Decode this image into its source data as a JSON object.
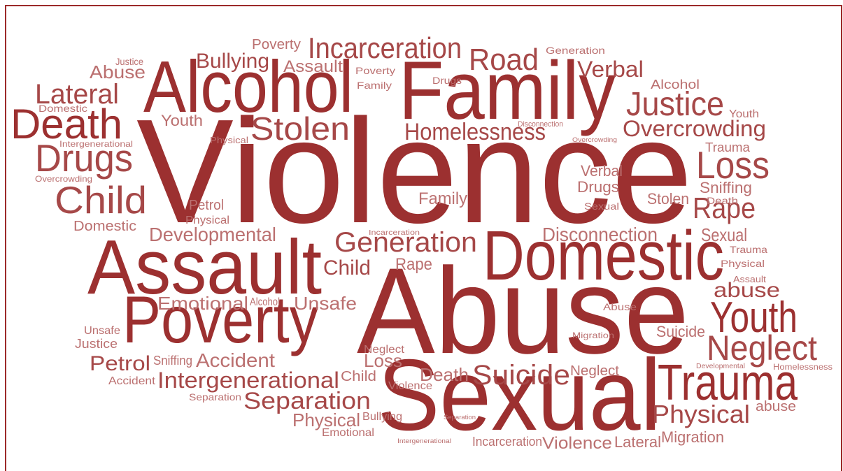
{
  "words": [
    "Violence",
    "Abuse",
    "Sexual",
    "Family",
    "Alcohol",
    "Assault",
    "Domestic",
    "Poverty",
    "Trauma",
    "Youth",
    "Neglect",
    "Death",
    "Drugs",
    "Child",
    "Lateral",
    "Stolen",
    "Justice",
    "Loss",
    "Rape",
    "Road",
    "Incarceration",
    "Bullying",
    "Poverty",
    "Assault",
    "Abuse",
    "Justice",
    "Verbal",
    "Generation",
    "Alcohol",
    "Youth",
    "Overcrowding",
    "Trauma",
    "Homelessness",
    "Disconnection",
    "Poverty",
    "Family",
    "Drugs",
    "Domestic",
    "Youth",
    "Intergenerational",
    "Physical",
    "Overcrowding",
    "Overcrowding",
    "Petrol",
    "Physical",
    "Domestic",
    "Developmental",
    "Generation",
    "Child",
    "Rape",
    "Incarceration",
    "Family",
    "Disconnection",
    "Sexual",
    "Verbal",
    "Drugs",
    "Sexual",
    "Sniffing",
    "Death",
    "Stolen",
    "Trauma",
    "Physical",
    "Assault",
    "abuse",
    "Emotional",
    "Alcohol",
    "Unsafe",
    "Abuse",
    "Migration",
    "Suicide",
    "Unsafe",
    "Justice",
    "Neglect",
    "Loss",
    "Petrol",
    "Sniffing",
    "Accident",
    "Intergenerational",
    "Child",
    "Accident",
    "Death",
    "Suicide",
    "Neglect",
    "Developmental",
    "Homelessness",
    "Violence",
    "Separation",
    "Separation",
    "Physical",
    "abuse",
    "Physical",
    "Bullying",
    "Emotional",
    "Separation",
    "Intergenerational",
    "Incarceration",
    "Violence",
    "Lateral",
    "Migration"
  ]
}
